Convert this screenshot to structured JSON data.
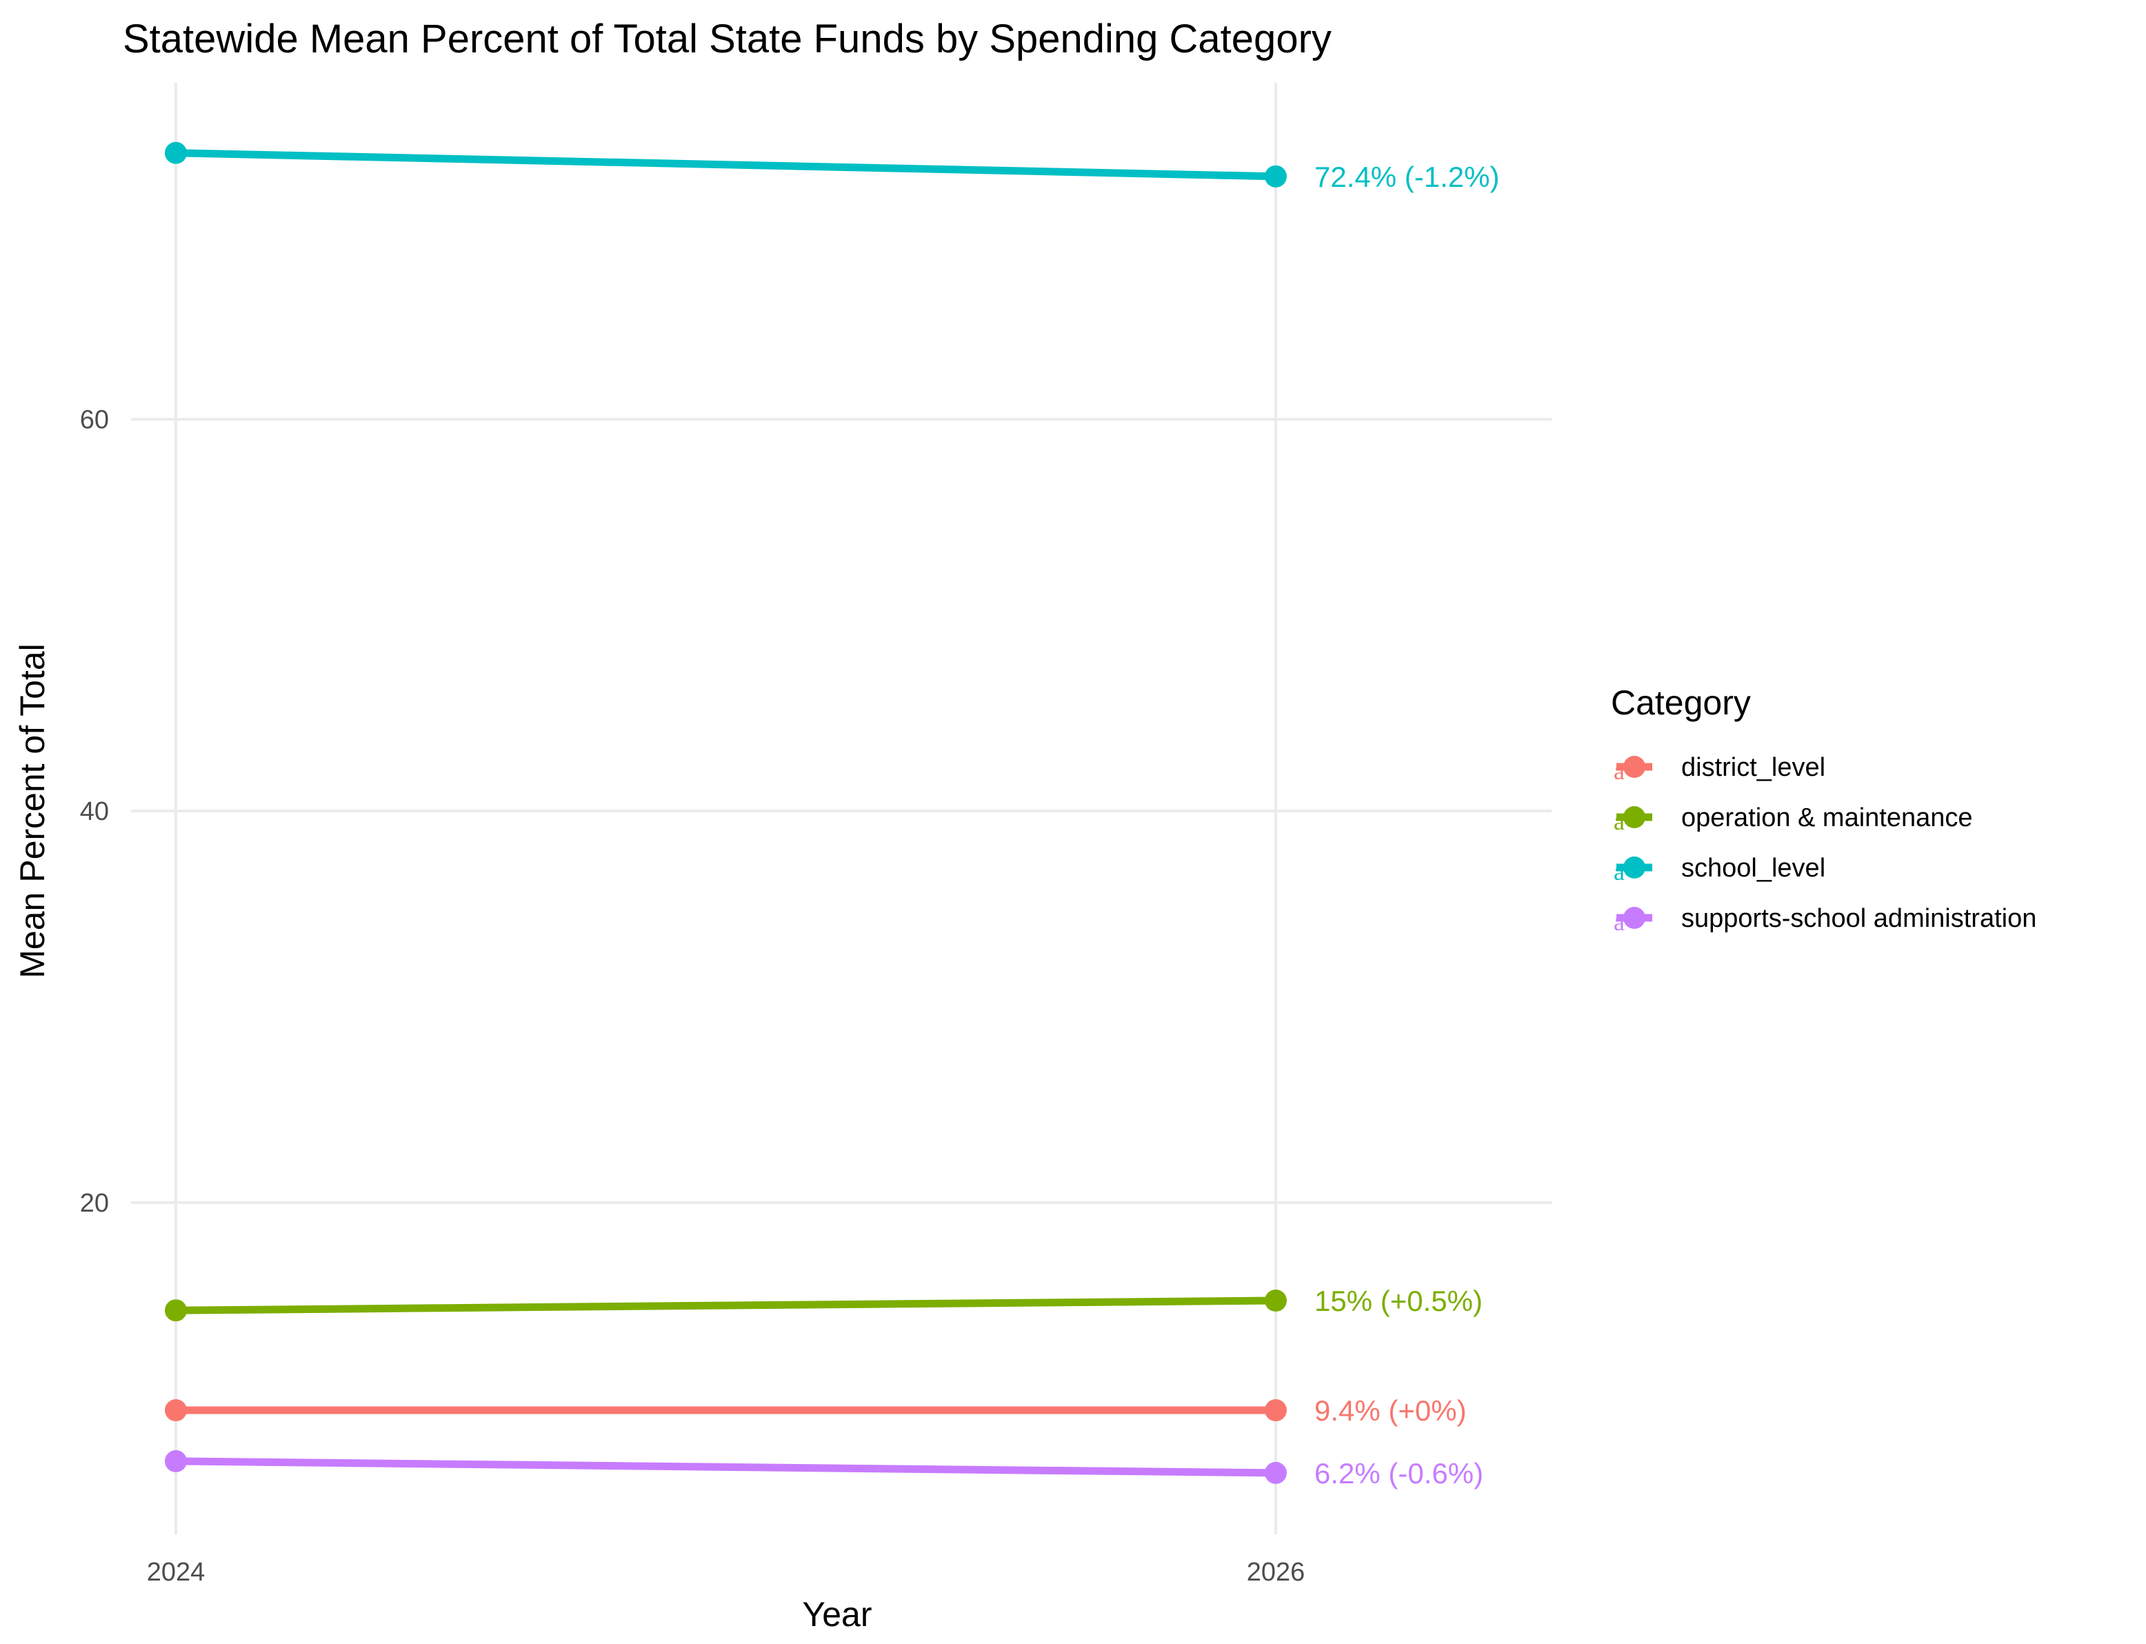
{
  "chart_data": {
    "type": "line",
    "title": "Statewide Mean Percent of Total State Funds by Spending Category",
    "xlabel": "Year",
    "ylabel": "Mean Percent of Total",
    "x": [
      2024,
      2026
    ],
    "x_ticks": [
      "2024",
      "2026"
    ],
    "y_ticks": [
      20,
      40,
      60
    ],
    "ylim": [
      4.9,
      75.1
    ],
    "xlim": [
      2023.85,
      2026.5
    ],
    "grid": true,
    "legend": {
      "title": "Category",
      "placement": "right"
    },
    "series": [
      {
        "name": "district_level",
        "color": "#F8766D",
        "values": [
          9.4,
          9.4
        ],
        "end_label": "9.4% (+0%)"
      },
      {
        "name": "operation & maintenance",
        "color": "#7CAE00",
        "values": [
          14.5,
          15.0
        ],
        "end_label": "15% (+0.5%)"
      },
      {
        "name": "school_level",
        "color": "#00BFC4",
        "values": [
          73.6,
          72.4
        ],
        "end_label": "72.4% (-1.2%)"
      },
      {
        "name": "supports-school administration",
        "color": "#C77CFF",
        "values": [
          6.8,
          6.2
        ],
        "end_label": "6.2% (-0.6%)"
      }
    ]
  }
}
